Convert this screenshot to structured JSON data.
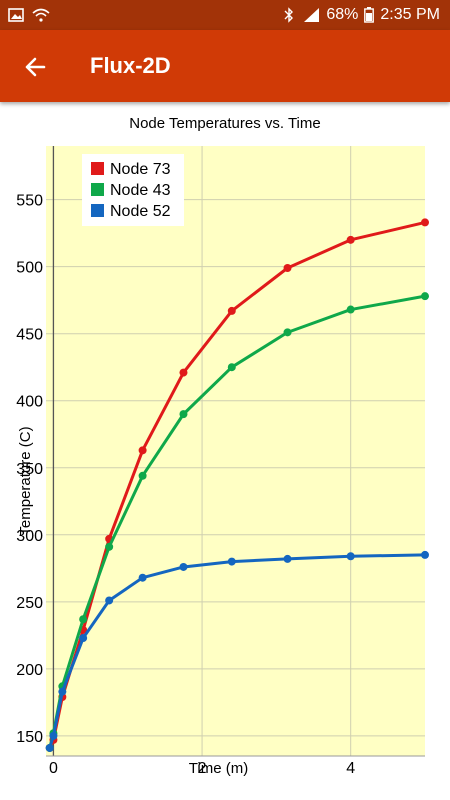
{
  "status_bar": {
    "battery": "68%",
    "time": "2:35 PM",
    "icons": [
      "image-icon",
      "wifi-icon",
      "bluetooth-icon",
      "lte-signal-icon",
      "battery-icon"
    ]
  },
  "app_bar": {
    "title": "Flux-2D",
    "back_icon": "arrow-left-icon",
    "color": "#d03a06"
  },
  "chart_data": {
    "type": "line",
    "title": "Node Temperatures vs. Time",
    "xlabel": "Time (m)",
    "ylabel": "Temperature (C)",
    "xlim": [
      -0.1,
      5.0
    ],
    "ylim": [
      135,
      590
    ],
    "x_ticks": [
      0,
      2,
      4
    ],
    "y_ticks": [
      150,
      200,
      250,
      300,
      350,
      400,
      450,
      500,
      550
    ],
    "grid": true,
    "legend_position": "top-left",
    "plot_background": "#ffffc4",
    "series": [
      {
        "name": "Node  73",
        "color": "#e01a1a",
        "x": [
          -0.05,
          0.0,
          0.12,
          0.4,
          0.75,
          1.2,
          1.75,
          2.4,
          3.15,
          4.0,
          5.0
        ],
        "y": [
          141,
          147,
          179,
          229,
          297,
          363,
          421,
          467,
          499,
          520,
          533
        ]
      },
      {
        "name": "Node  43",
        "color": "#0fa84a",
        "x": [
          -0.05,
          0.0,
          0.12,
          0.4,
          0.75,
          1.2,
          1.75,
          2.4,
          3.15,
          4.0,
          5.0
        ],
        "y": [
          141,
          152,
          187,
          237,
          291,
          344,
          390,
          425,
          451,
          468,
          478
        ]
      },
      {
        "name": "Node  52",
        "color": "#1466c0",
        "x": [
          -0.05,
          0.0,
          0.12,
          0.4,
          0.75,
          1.2,
          1.75,
          2.4,
          3.15,
          4.0,
          5.0
        ],
        "y": [
          141,
          150,
          183,
          223,
          251,
          268,
          276,
          280,
          282,
          284,
          285
        ]
      }
    ]
  }
}
